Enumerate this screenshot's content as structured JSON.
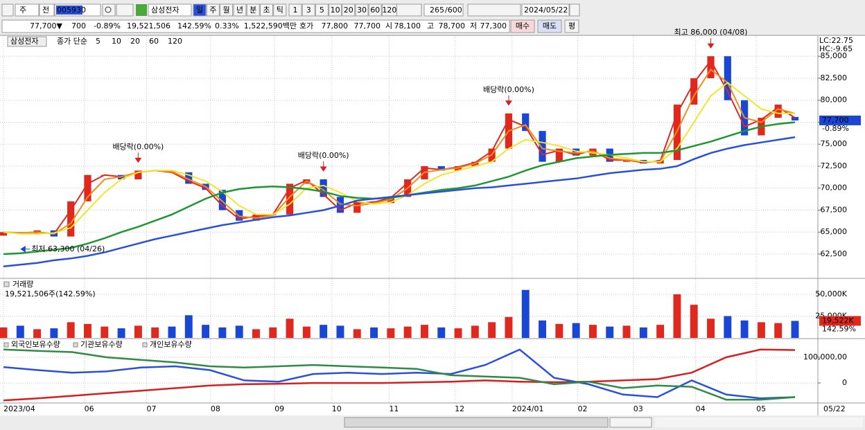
{
  "toolbar": {
    "market": "주",
    "scope": "전",
    "code": "005930",
    "name": "삼성전자",
    "periods": [
      "일",
      "주",
      "월",
      "년",
      "분",
      "초",
      "틱"
    ],
    "intervals": [
      "1",
      "3",
      "5",
      "10",
      "20",
      "30",
      "60",
      "120"
    ],
    "count": "265",
    "max": "/600",
    "date": "2024/05/22"
  },
  "info_bar": {
    "price": "77,700▼",
    "change": "700",
    "change_rate": "-0.89%",
    "volume": "19,521,506",
    "volume_rate": "142.59%",
    "turnover": "0.33%",
    "amount": "1,522,590백만",
    "quote_label": "호가",
    "ask": "77,800",
    "bid": "77,700",
    "open_label": "시",
    "open": "78,100",
    "high_label": "고",
    "high": "78,700",
    "low_label": "저",
    "low": "77,300",
    "buy": "매수",
    "sell": "매도",
    "avg": "평"
  },
  "chart_data": [
    {
      "type": "candlestick",
      "name": "삼성전자",
      "label": "종가 단순",
      "up_color": "#e0281e",
      "down_color": "#1a46d6",
      "open": [
        64600,
        65000,
        64800,
        65200,
        64500,
        68500,
        71500,
        71500,
        71000,
        72000,
        72000,
        71800,
        70500,
        69800,
        67500,
        66300,
        67000,
        67000,
        70500,
        71000,
        69000,
        67200,
        68500,
        68300,
        69000,
        71000,
        72500,
        72000,
        72500,
        73000,
        74500,
        78500,
        76500,
        73000,
        74500,
        73700,
        74500,
        73000,
        73200,
        72800,
        73200,
        79500,
        82500,
        85000,
        80000,
        76000,
        78000,
        78100
      ],
      "close": [
        65000,
        64800,
        65200,
        64500,
        68500,
        71500,
        71500,
        71000,
        72000,
        72000,
        71800,
        70500,
        69800,
        67500,
        66300,
        67000,
        67000,
        70500,
        71000,
        69000,
        67200,
        68500,
        68300,
        69000,
        71000,
        72500,
        72000,
        72500,
        73000,
        74500,
        78500,
        76500,
        73000,
        74500,
        73700,
        74500,
        73000,
        73200,
        72800,
        73200,
        79500,
        82500,
        85000,
        80000,
        76000,
        78000,
        79500,
        77700
      ],
      "series": [
        {
          "name": "5",
          "color": "#e0281e",
          "values": [
            65000,
            64900,
            65000,
            64800,
            67500,
            70500,
            71500,
            71300,
            71800,
            72000,
            71800,
            70800,
            70000,
            68000,
            66500,
            66800,
            67000,
            70000,
            70900,
            69300,
            67500,
            68300,
            68400,
            68900,
            70600,
            72300,
            72100,
            72400,
            72900,
            74200,
            77800,
            77000,
            73800,
            74300,
            73800,
            74300,
            73200,
            73200,
            72900,
            73100,
            78500,
            82000,
            84500,
            81000,
            77000,
            77800,
            79200,
            78000
          ]
        },
        {
          "name": "10",
          "color": "#f08c1e",
          "values": [
            65000,
            64900,
            65000,
            64800,
            66000,
            69000,
            71000,
            71300,
            71800,
            72000,
            71900,
            71000,
            70200,
            68500,
            66800,
            66600,
            66900,
            69000,
            70800,
            69800,
            68200,
            68000,
            68300,
            68700,
            70000,
            71800,
            72100,
            72300,
            72800,
            73800,
            76500,
            77200,
            74500,
            74200,
            74000,
            74200,
            73400,
            73200,
            73000,
            73000,
            76500,
            80500,
            83500,
            82000,
            78000,
            77500,
            79000,
            78500
          ]
        },
        {
          "name": "20",
          "color": "#f0e628",
          "values": [
            65000,
            64800,
            64800,
            64900,
            65500,
            67500,
            69500,
            71000,
            71800,
            72000,
            72000,
            71500,
            70800,
            69600,
            68000,
            67000,
            67000,
            68200,
            70000,
            70300,
            69500,
            68500,
            68200,
            68400,
            69200,
            70500,
            71500,
            72000,
            72500,
            73000,
            74500,
            75500,
            75200,
            74800,
            74200,
            74000,
            73800,
            73400,
            73000,
            73000,
            74500,
            77500,
            80500,
            82000,
            80500,
            79000,
            78500,
            78500
          ]
        },
        {
          "name": "60",
          "color": "#1e9632",
          "values": [
            62500,
            62600,
            62800,
            63000,
            63200,
            63700,
            64300,
            65000,
            65600,
            66300,
            67000,
            67900,
            68800,
            69500,
            69900,
            70100,
            70200,
            70100,
            69900,
            69600,
            69100,
            68900,
            68800,
            68900,
            69200,
            69500,
            69800,
            70000,
            70300,
            70800,
            71300,
            72000,
            72600,
            73000,
            73400,
            73600,
            73800,
            73900,
            74000,
            74000,
            74300,
            74800,
            75300,
            75900,
            76500,
            77000,
            77300,
            77500
          ]
        },
        {
          "name": "120",
          "color": "#2850dc",
          "values": [
            61100,
            61300,
            61500,
            61800,
            62000,
            62300,
            62700,
            63200,
            63700,
            64200,
            64600,
            65000,
            65400,
            65800,
            66100,
            66400,
            66700,
            66900,
            67200,
            67500,
            68000,
            68600,
            68800,
            69000,
            69200,
            69400,
            69600,
            69800,
            70000,
            70100,
            70300,
            70500,
            70700,
            70900,
            71100,
            71400,
            71700,
            71900,
            72100,
            72200,
            72500,
            73300,
            74000,
            74500,
            74900,
            75200,
            75500,
            75800
          ]
        }
      ],
      "ylim": [
        59900,
        87300
      ],
      "yticks": [
        {
          "value": 62500,
          "label": "62,500"
        },
        {
          "value": 65000,
          "label": "65,000"
        },
        {
          "value": 67500,
          "label": "67,500"
        },
        {
          "value": 70000,
          "label": "70,000"
        },
        {
          "value": 72500,
          "label": "72,500"
        },
        {
          "value": 75000,
          "label": "75,000"
        },
        {
          "value": 77500,
          "label": "77,500"
        },
        {
          "value": 80000,
          "label": "80,000"
        },
        {
          "value": 82500,
          "label": "82,500"
        },
        {
          "value": 85000,
          "label": "85,000"
        }
      ],
      "xticks": [
        {
          "value": 0,
          "label": "2023/04"
        },
        {
          "value": 4.8,
          "label": "06"
        },
        {
          "value": 8.5,
          "label": "07"
        },
        {
          "value": 12.3,
          "label": "08"
        },
        {
          "value": 16.1,
          "label": "09"
        },
        {
          "value": 19.5,
          "label": "10"
        },
        {
          "value": 22.9,
          "label": "11"
        },
        {
          "value": 26.8,
          "label": "12"
        },
        {
          "value": 30.2,
          "label": "2024/01"
        },
        {
          "value": 34.1,
          "label": "02"
        },
        {
          "value": 37.4,
          "label": "03"
        },
        {
          "value": 41.1,
          "label": "04"
        },
        {
          "value": 44.7,
          "label": "05"
        }
      ],
      "x_end_label": "05/22",
      "annotations": [
        {
          "text": "최고 86,000 (04/08)",
          "index": 42,
          "placement": "above"
        },
        {
          "text": "최저 63,300 (04/26)",
          "index": 1,
          "placement": "below"
        },
        {
          "text": "배당락(0.00%)",
          "index": 8,
          "placement": "above"
        },
        {
          "text": "배당락(0.00%)",
          "index": 19,
          "placement": "above"
        },
        {
          "text": "배당락(0.00%)",
          "index": 30,
          "placement": "above"
        }
      ],
      "lc": "LC:22.75",
      "hc": "HC:-9.65",
      "last": {
        "value": 77700,
        "label": "77,700",
        "change": "-0.89%"
      }
    },
    {
      "type": "bar",
      "title": "거래량",
      "subtitle": "19,521,506주(142.59%)",
      "values": [
        12000,
        14000,
        10000,
        11000,
        18000,
        16000,
        13000,
        11000,
        14000,
        12000,
        13000,
        26000,
        15000,
        12000,
        14000,
        10000,
        12000,
        22000,
        13000,
        15000,
        14000,
        10000,
        12000,
        11000,
        13000,
        15000,
        12000,
        11000,
        14000,
        18000,
        24000,
        55000,
        20000,
        16000,
        17000,
        15000,
        13000,
        14000,
        12000,
        15000,
        50000,
        38000,
        22000,
        25000,
        20000,
        18000,
        17000,
        19522
      ],
      "ylim": [
        0,
        67500
      ],
      "yticks": [
        {
          "value": 25000,
          "label": "25,000K"
        },
        {
          "value": 50000,
          "label": "50,000K"
        }
      ],
      "last": {
        "value": 19522,
        "label": "19,522K",
        "rate": "142.59%"
      }
    },
    {
      "type": "line",
      "series": [
        {
          "name": "외국인보유수량",
          "color": "#d81e1e",
          "values": [
            -68000000,
            -60000000,
            -50000000,
            -40000000,
            -30000000,
            -20000000,
            -10000000,
            -5000000,
            -3000000,
            0,
            0,
            0,
            2000000,
            5000000,
            10000000,
            5000000,
            3000000,
            5000000,
            10000000,
            15000000,
            40000000,
            100000000,
            130000000,
            128000000
          ]
        },
        {
          "name": "기관보유수량",
          "color": "#2850dc",
          "values": [
            62000000,
            50000000,
            40000000,
            45000000,
            60000000,
            65000000,
            50000000,
            10000000,
            5000000,
            35000000,
            40000000,
            35000000,
            40000000,
            35000000,
            70000000,
            130000000,
            20000000,
            -5000000,
            -45000000,
            -55000000,
            10000000,
            -45000000,
            -60000000,
            -55000000
          ]
        },
        {
          "name": "개인보유수량",
          "color": "#2e8b46",
          "values": [
            130000000,
            125000000,
            120000000,
            100000000,
            90000000,
            80000000,
            65000000,
            60000000,
            65000000,
            70000000,
            65000000,
            60000000,
            55000000,
            30000000,
            25000000,
            20000000,
            -5000000,
            5000000,
            -20000000,
            -10000000,
            -15000000,
            -65000000,
            -65000000,
            -55000000
          ]
        }
      ],
      "ylim": [
        -78000000,
        170000000
      ],
      "yticks": [
        {
          "value": 100000000,
          "label": "100,000,00"
        },
        0
      ]
    }
  ]
}
